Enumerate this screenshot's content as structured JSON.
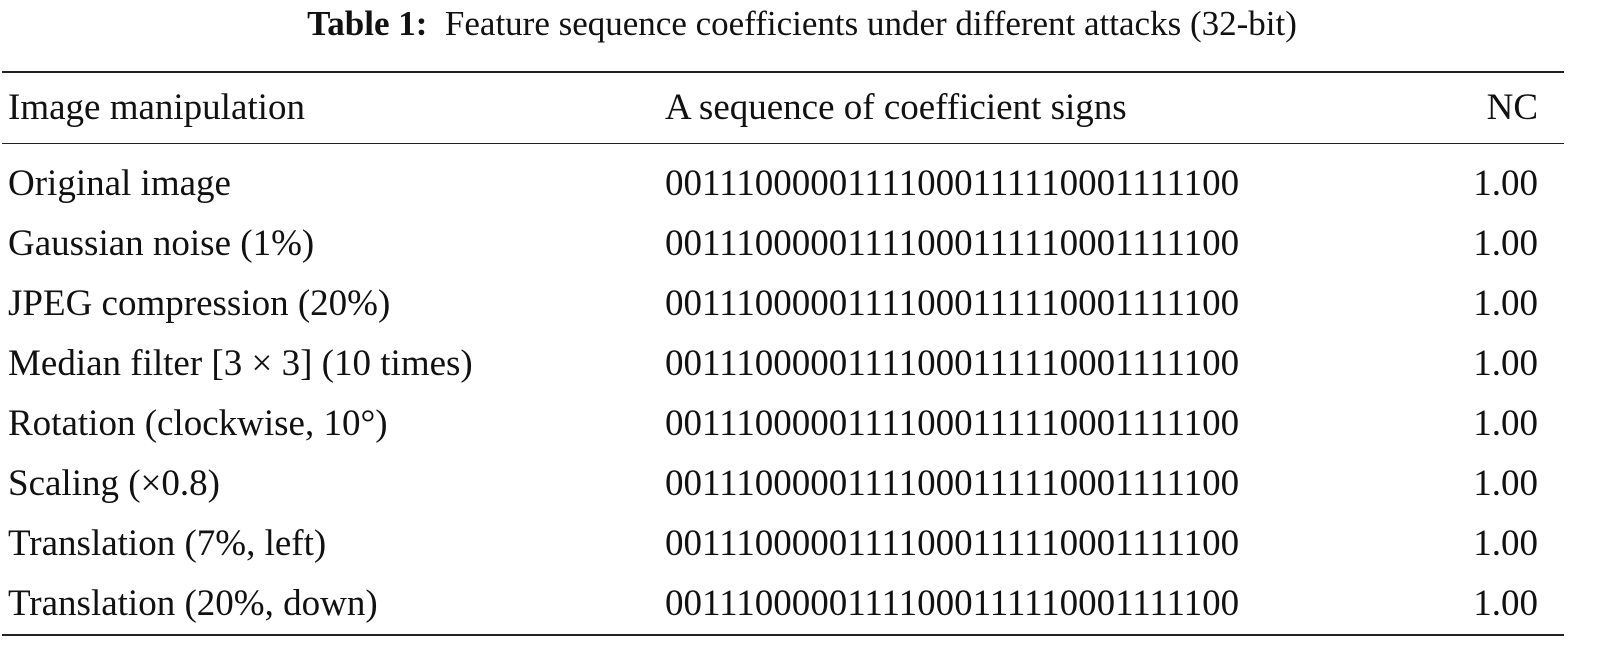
{
  "caption": {
    "label": "Table 1:",
    "text": "Feature sequence coefficients under different attacks (32-bit)"
  },
  "table": {
    "headers": [
      "Image manipulation",
      "A sequence of coefficient signs",
      "NC"
    ],
    "rows": [
      [
        "Original image",
        "00111000001111000111110001111100",
        "1.00"
      ],
      [
        "Gaussian noise (1%)",
        "00111000001111000111110001111100",
        "1.00"
      ],
      [
        "JPEG compression (20%)",
        "00111000001111000111110001111100",
        "1.00"
      ],
      [
        "Median filter [3 × 3] (10 times)",
        "00111000001111000111110001111100",
        "1.00"
      ],
      [
        "Rotation (clockwise, 10°)",
        "00111000001111000111110001111100",
        "1.00"
      ],
      [
        "Scaling (×0.8)",
        "00111000001111000111110001111100",
        "1.00"
      ],
      [
        "Translation (7%, left)",
        "00111000001111000111110001111100",
        "1.00"
      ],
      [
        "Translation (20%, down)",
        "00111000001111000111110001111100",
        "1.00"
      ]
    ]
  }
}
